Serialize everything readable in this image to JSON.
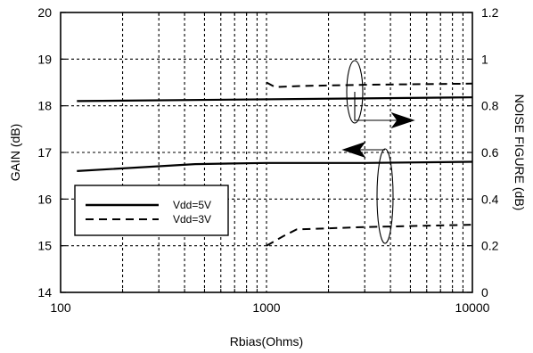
{
  "chart_data": {
    "type": "line",
    "xlabel": "Rbias(Ohms)",
    "ylabel": "GAIN (dB)",
    "y2label": "NOISE FIGURE (dB)",
    "xscale": "log",
    "xlim": [
      100,
      10000
    ],
    "ylim": [
      14,
      20
    ],
    "y2lim": [
      0,
      1.2
    ],
    "grid": true,
    "legend_placement": "middle-left",
    "x_ticks": [
      "100",
      "1000",
      "10000"
    ],
    "y_ticks": [
      "14",
      "15",
      "16",
      "17",
      "18",
      "19",
      "20"
    ],
    "y2_ticks": [
      "0",
      "0.2",
      "0.4",
      "0.6",
      "0.8",
      "1",
      "1.2"
    ],
    "series": [
      {
        "name": "Vdd=5V",
        "style": "solid",
        "axis": "left",
        "quantity": "gain",
        "x": [
          120,
          10000
        ],
        "y": [
          18.1,
          18.18
        ]
      },
      {
        "name": "Vdd=5V",
        "style": "solid",
        "axis": "right",
        "quantity": "noise figure",
        "x": [
          120,
          450,
          1000,
          3000,
          10000
        ],
        "y": [
          0.52,
          0.55,
          0.555,
          0.555,
          0.56
        ]
      },
      {
        "name": "Vdd=3V",
        "style": "dashed",
        "axis": "right",
        "quantity": "noise figure",
        "x": [
          1000,
          1100,
          1500,
          3000,
          10000
        ],
        "y": [
          0.9,
          0.88,
          0.885,
          0.89,
          0.895
        ]
      },
      {
        "name": "Vdd=3V",
        "style": "dashed",
        "axis": "left",
        "quantity": "gain",
        "x": [
          1000,
          1200,
          1400,
          3000,
          10000
        ],
        "y": [
          15.0,
          15.2,
          15.35,
          15.4,
          15.45
        ]
      }
    ],
    "legend": [
      "Vdd=5V",
      "Vdd=3V"
    ],
    "colors": {
      "line": "#000000",
      "grid": "#000000",
      "background": "#ffffff"
    }
  }
}
